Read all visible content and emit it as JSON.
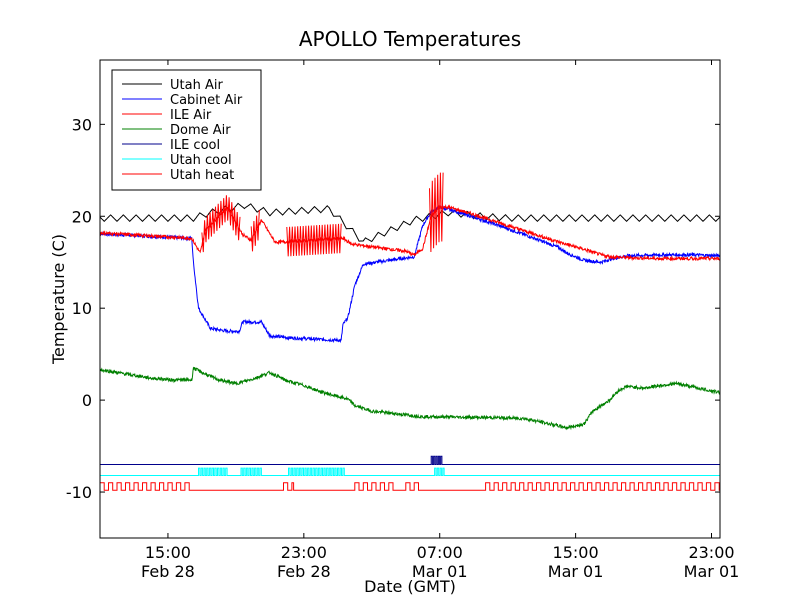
{
  "chart_data": {
    "type": "line",
    "title": "APOLLO Temperatures",
    "xlabel": "Date (GMT)",
    "ylabel": "Temperature (C)",
    "xlim": [
      11.0,
      47.5
    ],
    "ylim": [
      -15,
      37
    ],
    "yticks": [
      {
        "value": 30,
        "label": "30"
      },
      {
        "value": 20,
        "label": "20"
      },
      {
        "value": 10,
        "label": "10"
      },
      {
        "value": 0,
        "label": "0"
      },
      {
        "value": -10,
        "label": "-10"
      }
    ],
    "xticks": [
      {
        "value": 15,
        "label": "15:00",
        "sublabel": "Feb 28"
      },
      {
        "value": 23,
        "label": "23:00",
        "sublabel": "Feb 28"
      },
      {
        "value": 31,
        "label": "07:00",
        "sublabel": "Mar 01"
      },
      {
        "value": 39,
        "label": "15:00",
        "sublabel": "Mar 01"
      },
      {
        "value": 47,
        "label": "23:00",
        "sublabel": "Mar 01"
      }
    ],
    "legend_position": "top-left",
    "series": [
      {
        "name": "Utah Air",
        "color": "#000000",
        "kind": "sawtooth",
        "x": [
          11.0,
          16.5,
          17.5,
          19.5,
          21.0,
          24.5,
          26.5,
          29.5,
          31.5,
          33.5,
          35.0,
          47.5
        ],
        "y": [
          19.8,
          19.8,
          20.4,
          21.2,
          20.4,
          20.8,
          17.2,
          19.6,
          20.4,
          20.0,
          19.8,
          19.8
        ]
      },
      {
        "name": "Cabinet Air",
        "color": "#0000ff",
        "kind": "noisy",
        "x": [
          11.0,
          16.4,
          16.5,
          16.8,
          17.5,
          18.5,
          19.2,
          19.4,
          20.5,
          21.0,
          22.0,
          23.0,
          24.0,
          25.2,
          25.3,
          25.6,
          26.0,
          26.5,
          29.5,
          30.0,
          30.5,
          31.0,
          32.0,
          34.0,
          36.0,
          38.0,
          38.5,
          39.5,
          40.5,
          41.0,
          42.0,
          44.0,
          46.0,
          47.5
        ],
        "y": [
          18.1,
          17.6,
          15.0,
          10.0,
          7.8,
          7.5,
          7.5,
          8.5,
          8.5,
          7.0,
          6.8,
          6.7,
          6.6,
          6.5,
          8.2,
          9.0,
          12.5,
          14.8,
          15.6,
          19.0,
          20.5,
          21.0,
          20.5,
          19.3,
          18.0,
          16.6,
          16.0,
          15.2,
          15.0,
          15.3,
          15.7,
          15.8,
          15.8,
          15.7
        ]
      },
      {
        "name": "ILE Air",
        "color": "#ff0000",
        "kind": "noisy",
        "x": [
          11.0,
          16.4,
          16.9,
          17.2,
          18.5,
          19.4,
          19.9,
          20.5,
          21.3,
          21.7,
          25.3,
          25.8,
          26.5,
          29.0,
          29.5,
          30.0,
          30.5,
          31.0,
          31.5,
          33.0,
          35.0,
          38.0,
          39.5,
          40.5,
          41.0,
          42.0,
          44.0,
          47.5
        ],
        "y": [
          18.2,
          17.6,
          16.0,
          18.5,
          21.0,
          18.0,
          17.4,
          19.6,
          17.2,
          17.2,
          17.6,
          17.0,
          16.8,
          16.2,
          15.8,
          16.5,
          20.0,
          21.0,
          21.0,
          20.2,
          19.0,
          17.2,
          16.4,
          15.8,
          15.6,
          15.5,
          15.4,
          15.4
        ]
      },
      {
        "name": "Dome Air",
        "color": "#008000",
        "kind": "noisy",
        "x": [
          11.0,
          13.0,
          14.0,
          15.2,
          16.4,
          16.5,
          17.0,
          18.0,
          19.0,
          20.0,
          21.0,
          22.0,
          23.0,
          24.0,
          25.2,
          25.6,
          26.0,
          27.0,
          30.0,
          34.0,
          36.0,
          37.5,
          38.5,
          39.5,
          40.0,
          41.0,
          41.5,
          42.0,
          43.0,
          44.0,
          45.0,
          46.0,
          47.5
        ],
        "y": [
          3.3,
          2.7,
          2.4,
          2.2,
          2.2,
          3.5,
          3.0,
          2.2,
          1.8,
          2.3,
          3.0,
          2.1,
          1.6,
          0.9,
          0.3,
          0.1,
          -0.6,
          -1.2,
          -1.8,
          -1.9,
          -2.0,
          -2.6,
          -3.0,
          -2.6,
          -1.2,
          0.0,
          1.0,
          1.5,
          1.3,
          1.6,
          1.8,
          1.4,
          0.8
        ]
      },
      {
        "name": "ILE cool",
        "color": "#00008b",
        "kind": "pulses",
        "base": -7.0,
        "high": -6.1,
        "pulses": [
          [
            30.5,
            31.2
          ]
        ],
        "period": 0.14
      },
      {
        "name": "Utah cool",
        "color": "#00ffff",
        "kind": "pulses",
        "base": -8.2,
        "high": -7.4,
        "pulses": [
          [
            16.8,
            18.5
          ],
          [
            19.3,
            20.5
          ],
          [
            22.1,
            25.4
          ],
          [
            30.7,
            31.3
          ]
        ],
        "period": 0.16
      },
      {
        "name": "Utah heat",
        "color": "#ff0000",
        "kind": "pulses",
        "base": -9.8,
        "high": -9.0,
        "pulses": [
          [
            11.0,
            16.4
          ],
          [
            21.8,
            22.4
          ],
          [
            26.0,
            28.3
          ],
          [
            29.0,
            30.0
          ],
          [
            33.7,
            47.5
          ]
        ],
        "period": 0.5
      }
    ]
  }
}
